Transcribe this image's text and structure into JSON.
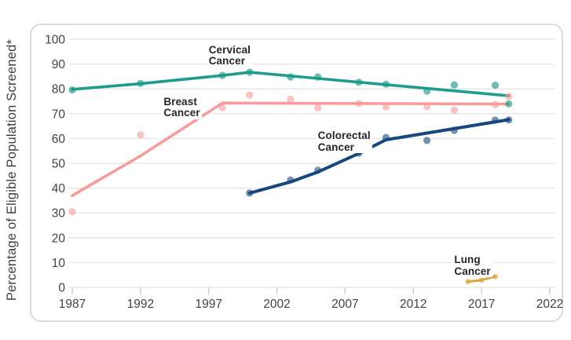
{
  "chart_data": {
    "type": "line",
    "title": "",
    "ylabel": "Percentage of Eligible Population Screened*",
    "xlabel": "",
    "x_ticks": [
      1987,
      1992,
      1997,
      2002,
      2007,
      2012,
      2017,
      2022
    ],
    "y_ticks": [
      0,
      10,
      20,
      30,
      40,
      50,
      60,
      70,
      80,
      90,
      100
    ],
    "xlim": [
      1986.5,
      2022.5
    ],
    "ylim": [
      0,
      100
    ],
    "grid": "horizontal-only",
    "legend": "inline-labels-on-plot",
    "axis_text_color": "#434343",
    "gridline_color": "#e4e4e4",
    "tick_color": "#c6c6c6",
    "series": [
      {
        "name": "Cervical Cancer",
        "slug": "cervical-cancer",
        "color": "#1f9c8b",
        "line_width": 3.6,
        "dot_radius": 4.6,
        "dot_opacity": 0.65,
        "label_lines": [
          "Cervical",
          "Cancer"
        ],
        "label_anchor": {
          "year": 1997.0,
          "value": 97.8
        },
        "trend": [
          [
            1987,
            79.8
          ],
          [
            1992,
            82.1
          ],
          [
            1998,
            85.4
          ],
          [
            2000,
            86.7
          ],
          [
            2019,
            77.2
          ]
        ],
        "points": [
          [
            1987,
            79.6
          ],
          [
            1992,
            82.2
          ],
          [
            1998,
            85.4
          ],
          [
            2000,
            86.7
          ],
          [
            2003,
            84.8
          ],
          [
            2005,
            84.8
          ],
          [
            2008,
            82.7
          ],
          [
            2010,
            81.9
          ],
          [
            2013,
            79.1
          ],
          [
            2015,
            81.6
          ],
          [
            2018,
            81.5
          ],
          [
            2019,
            74.0
          ]
        ]
      },
      {
        "name": "Breast Cancer",
        "slug": "breast-cancer",
        "color": "#f79b9b",
        "line_width": 3.6,
        "dot_radius": 4.6,
        "dot_opacity": 0.6,
        "label_lines": [
          "Breast",
          "Cancer"
        ],
        "label_anchor": {
          "year": 1993.7,
          "value": 76.9
        },
        "trend": [
          [
            1987,
            37.0
          ],
          [
            1992,
            53.0
          ],
          [
            1998,
            74.3
          ],
          [
            2019,
            73.9
          ]
        ],
        "points": [
          [
            1987,
            30.5
          ],
          [
            1992,
            61.5
          ],
          [
            1998,
            72.4
          ],
          [
            2000,
            77.5
          ],
          [
            2003,
            75.9
          ],
          [
            2005,
            72.4
          ],
          [
            2008,
            74.1
          ],
          [
            2010,
            72.8
          ],
          [
            2013,
            72.8
          ],
          [
            2015,
            71.5
          ],
          [
            2018,
            73.7
          ],
          [
            2019,
            77.0
          ]
        ]
      },
      {
        "name": "Colorectal Cancer",
        "slug": "colorectal-cancer",
        "color": "#17477f",
        "line_width": 4,
        "dot_radius": 4.6,
        "dot_opacity": 0.6,
        "label_lines": [
          "Colorectal",
          "Cancer"
        ],
        "label_anchor": {
          "year": 2005.0,
          "value": 63.2
        },
        "trend": [
          [
            2000,
            38.0
          ],
          [
            2003,
            42.5
          ],
          [
            2005,
            46.5
          ],
          [
            2008,
            54.0
          ],
          [
            2010,
            59.5
          ],
          [
            2019,
            67.6
          ]
        ],
        "points": [
          [
            2000,
            38.0
          ],
          [
            2003,
            43.3
          ],
          [
            2005,
            47.2
          ],
          [
            2008,
            54.1
          ],
          [
            2010,
            60.4
          ],
          [
            2013,
            59.2
          ],
          [
            2015,
            63.3
          ],
          [
            2018,
            67.4
          ],
          [
            2019,
            67.5
          ]
        ]
      },
      {
        "name": "Lung Cancer",
        "slug": "lung-cancer",
        "color": "#dfa83f",
        "line_width": 3,
        "dot_radius": 3.4,
        "dot_opacity": 0.7,
        "label_lines": [
          "Lung",
          "Cancer"
        ],
        "label_anchor": {
          "year": 2015.0,
          "value": 13.2
        },
        "trend": [
          [
            2016,
            2.3
          ],
          [
            2017,
            2.9
          ],
          [
            2018,
            4.4
          ]
        ],
        "points": [
          [
            2016,
            2.3
          ],
          [
            2017,
            2.9
          ],
          [
            2018,
            4.4
          ]
        ]
      }
    ]
  }
}
